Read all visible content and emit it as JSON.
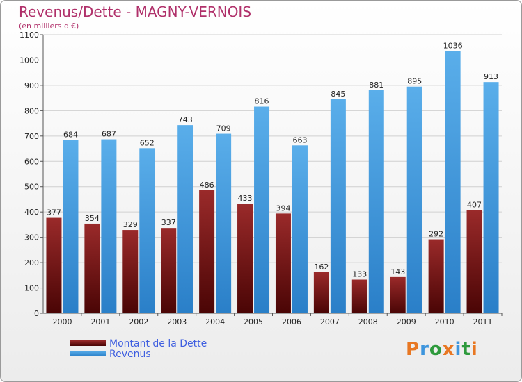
{
  "chart_data": {
    "type": "bar",
    "title": "Revenus/Dette - MAGNY-VERNOIS",
    "subtitle": "(en milliers d'€)",
    "categories": [
      "2000",
      "2001",
      "2002",
      "2003",
      "2004",
      "2005",
      "2006",
      "2007",
      "2008",
      "2009",
      "2010",
      "2011"
    ],
    "series": [
      {
        "name": "Montant de la Dette",
        "color": "#7a1a1a",
        "values": [
          377,
          354,
          329,
          337,
          486,
          433,
          394,
          162,
          133,
          143,
          292,
          407
        ]
      },
      {
        "name": "Revenus",
        "color": "#3d95dd",
        "values": [
          684,
          687,
          652,
          743,
          709,
          816,
          663,
          845,
          881,
          895,
          1036,
          913
        ]
      }
    ],
    "ylim": [
      0,
      1100
    ],
    "yticks": [
      0,
      100,
      200,
      300,
      400,
      500,
      600,
      700,
      800,
      900,
      1000,
      1100
    ],
    "grid": true,
    "legend": "bottom-left"
  },
  "logo": {
    "text": "Proxiti",
    "colors": [
      "#e87722",
      "#3d95dd",
      "#2e9a3c",
      "#e87722",
      "#3d95dd",
      "#2e9a3c",
      "#e87722"
    ]
  }
}
